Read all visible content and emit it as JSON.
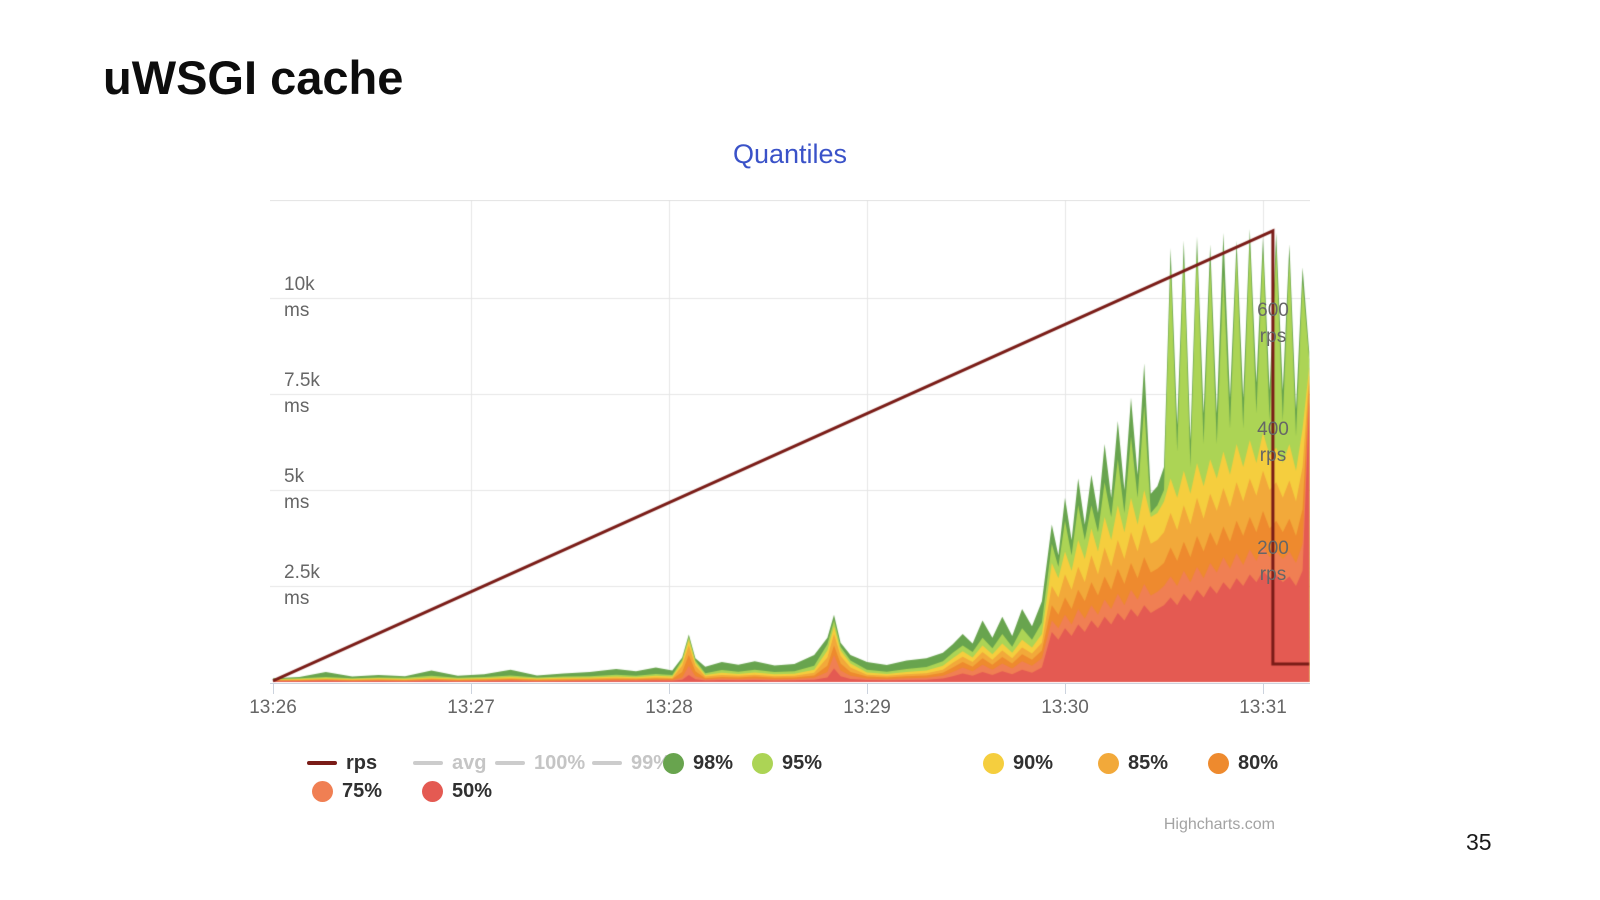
{
  "slide": {
    "title": "uWSGI cache",
    "page_number": "35"
  },
  "chart": {
    "title": "Quantiles",
    "credit": "Highcharts.com",
    "x_axis": {
      "labels": [
        "13:26",
        "13:27",
        "13:28",
        "13:29",
        "13:30",
        "13:31"
      ]
    },
    "y_axis_left": {
      "labels": [
        "10k\nms",
        "7.5k\nms",
        "5k\nms",
        "2.5k\nms"
      ]
    },
    "y_axis_right": {
      "labels": [
        "600\nrps",
        "400\nrps",
        "200\nrps"
      ]
    },
    "legend": [
      {
        "label": "rps",
        "type": "line",
        "color": "#7a1c17",
        "disabled": false
      },
      {
        "label": "avg",
        "type": "line",
        "color": "#cccccc",
        "disabled": true
      },
      {
        "label": "100%",
        "type": "line",
        "color": "#cccccc",
        "disabled": true
      },
      {
        "label": "99%",
        "type": "line",
        "color": "#cccccc",
        "disabled": true
      },
      {
        "label": "98%",
        "type": "circle",
        "color": "#68a44e",
        "disabled": false
      },
      {
        "label": "95%",
        "type": "circle",
        "color": "#acd455",
        "disabled": false
      },
      {
        "label": "90%",
        "type": "circle",
        "color": "#f5ce3e",
        "disabled": false
      },
      {
        "label": "85%",
        "type": "circle",
        "color": "#f2a93a",
        "disabled": false
      },
      {
        "label": "80%",
        "type": "circle",
        "color": "#ee8a2e",
        "disabled": false
      },
      {
        "label": "75%",
        "type": "circle",
        "color": "#f07f53",
        "disabled": false
      },
      {
        "label": "50%",
        "type": "circle",
        "color": "#e45a52",
        "disabled": false
      }
    ]
  },
  "chart_data": {
    "type": "area",
    "title": "Quantiles",
    "subtitle": "",
    "stacking": "overlaid-quantiles (higher quantile drawn behind, filled to zero)",
    "x_unit": "seconds after 13:26",
    "x_ticks": [
      "13:26",
      "13:27",
      "13:28",
      "13:29",
      "13:30",
      "13:31"
    ],
    "x_tick_seconds": [
      0,
      60,
      120,
      180,
      240,
      300
    ],
    "x_range_seconds": [
      0,
      314
    ],
    "y_left": {
      "unit": "ms",
      "ticks": [
        2500,
        5000,
        7500,
        10000
      ],
      "tick_labels": [
        "2.5k ms",
        "5k ms",
        "7.5k ms",
        "10k ms"
      ],
      "range": [
        0,
        12550
      ],
      "grid": true
    },
    "y_right": {
      "unit": "rps",
      "ticks": [
        200,
        400,
        600
      ],
      "tick_labels": [
        "200 rps",
        "400 rps",
        "600 rps"
      ],
      "range": [
        0,
        807
      ],
      "grid": false
    },
    "legend_position": "bottom-left, two rows",
    "rps_line": {
      "name": "rps",
      "color": "#7a1c17",
      "width": 3,
      "points_t_rps": [
        [
          0,
          2
        ],
        [
          303,
          755
        ],
        [
          303,
          30
        ],
        [
          314,
          30
        ]
      ]
    },
    "series": [
      {
        "name": "98%",
        "color": "#68a44e",
        "column": 7
      },
      {
        "name": "95%",
        "color": "#acd455",
        "column": 6
      },
      {
        "name": "90%",
        "color": "#f5ce3e",
        "column": 5
      },
      {
        "name": "85%",
        "color": "#f2a93a",
        "column": 4
      },
      {
        "name": "80%",
        "color": "#ee8a2e",
        "column": 3
      },
      {
        "name": "75%",
        "color": "#f07f53",
        "column": 2
      },
      {
        "name": "50%",
        "color": "#e45a52",
        "column": 1
      }
    ],
    "columns": [
      "t_seconds",
      "q50_ms",
      "q75_ms",
      "q80_ms",
      "q85_ms",
      "q90_ms",
      "q95_ms",
      "q98_ms"
    ],
    "samples": [
      [
        0,
        20,
        30,
        40,
        50,
        60,
        80,
        100
      ],
      [
        8,
        25,
        35,
        45,
        60,
        80,
        100,
        130
      ],
      [
        16,
        30,
        45,
        60,
        80,
        100,
        130,
        260
      ],
      [
        24,
        20,
        30,
        45,
        60,
        80,
        100,
        140
      ],
      [
        32,
        25,
        40,
        55,
        75,
        95,
        120,
        180
      ],
      [
        40,
        20,
        30,
        45,
        60,
        80,
        110,
        150
      ],
      [
        48,
        30,
        50,
        70,
        90,
        120,
        160,
        300
      ],
      [
        56,
        20,
        35,
        50,
        65,
        85,
        110,
        160
      ],
      [
        64,
        25,
        40,
        60,
        80,
        100,
        130,
        200
      ],
      [
        72,
        30,
        50,
        75,
        100,
        130,
        170,
        320
      ],
      [
        80,
        20,
        35,
        50,
        70,
        90,
        120,
        170
      ],
      [
        88,
        25,
        40,
        60,
        85,
        110,
        140,
        220
      ],
      [
        96,
        30,
        45,
        65,
        90,
        115,
        150,
        260
      ],
      [
        104,
        35,
        55,
        80,
        110,
        145,
        190,
        340
      ],
      [
        110,
        30,
        50,
        70,
        95,
        125,
        160,
        280
      ],
      [
        116,
        40,
        60,
        90,
        120,
        160,
        210,
        380
      ],
      [
        121,
        35,
        55,
        80,
        105,
        140,
        180,
        300
      ],
      [
        124,
        60,
        120,
        260,
        420,
        520,
        580,
        640
      ],
      [
        126,
        180,
        420,
        700,
        950,
        1100,
        1180,
        1240
      ],
      [
        128,
        70,
        150,
        280,
        420,
        500,
        560,
        620
      ],
      [
        131,
        40,
        70,
        100,
        140,
        180,
        230,
        400
      ],
      [
        136,
        50,
        90,
        130,
        180,
        240,
        310,
        520
      ],
      [
        141,
        45,
        80,
        120,
        160,
        210,
        270,
        450
      ],
      [
        146,
        50,
        90,
        140,
        190,
        250,
        320,
        540
      ],
      [
        152,
        40,
        70,
        110,
        150,
        200,
        260,
        430
      ],
      [
        158,
        45,
        80,
        120,
        165,
        215,
        280,
        470
      ],
      [
        164,
        60,
        110,
        170,
        240,
        320,
        420,
        700
      ],
      [
        168,
        120,
        260,
        420,
        640,
        820,
        980,
        1150
      ],
      [
        170,
        350,
        700,
        950,
        1250,
        1450,
        1600,
        1750
      ],
      [
        172,
        150,
        300,
        480,
        680,
        820,
        920,
        1020
      ],
      [
        175,
        80,
        160,
        260,
        380,
        480,
        560,
        700
      ],
      [
        180,
        50,
        90,
        140,
        190,
        250,
        320,
        520
      ],
      [
        186,
        45,
        80,
        120,
        160,
        210,
        270,
        440
      ],
      [
        192,
        55,
        100,
        150,
        200,
        260,
        340,
        560
      ],
      [
        198,
        60,
        110,
        170,
        230,
        300,
        390,
        620
      ],
      [
        203,
        90,
        160,
        240,
        320,
        420,
        540,
        760
      ],
      [
        206,
        150,
        260,
        380,
        500,
        620,
        760,
        980
      ],
      [
        209,
        220,
        380,
        520,
        660,
        800,
        950,
        1250
      ],
      [
        212,
        160,
        280,
        400,
        520,
        640,
        780,
        1000
      ],
      [
        215,
        260,
        450,
        620,
        780,
        950,
        1150,
        1600
      ],
      [
        218,
        180,
        320,
        450,
        580,
        720,
        880,
        1150
      ],
      [
        221,
        280,
        480,
        650,
        820,
        1000,
        1250,
        1700
      ],
      [
        224,
        200,
        350,
        480,
        620,
        760,
        920,
        1200
      ],
      [
        227,
        320,
        540,
        720,
        900,
        1100,
        1400,
        1900
      ],
      [
        230,
        240,
        420,
        580,
        740,
        900,
        1100,
        1450
      ],
      [
        233,
        380,
        620,
        820,
        1020,
        1250,
        1550,
        2100
      ],
      [
        236,
        1300,
        1600,
        2000,
        2500,
        3100,
        3600,
        4100
      ],
      [
        238,
        1100,
        1400,
        1750,
        2200,
        2700,
        3000,
        3300
      ],
      [
        240,
        1400,
        1750,
        2200,
        2800,
        3400,
        4200,
        4800
      ],
      [
        242,
        1200,
        1500,
        1900,
        2400,
        2900,
        3300,
        3700
      ],
      [
        244,
        1500,
        1900,
        2400,
        3000,
        3700,
        4600,
        5300
      ],
      [
        246,
        1300,
        1650,
        2100,
        2600,
        3200,
        3700,
        4100
      ],
      [
        248,
        1600,
        2000,
        2600,
        3300,
        4000,
        4600,
        5400
      ],
      [
        250,
        1400,
        1750,
        2250,
        2800,
        3400,
        3900,
        4400
      ],
      [
        252,
        1700,
        2150,
        2750,
        3500,
        4300,
        5200,
        6200
      ],
      [
        254,
        1500,
        1900,
        2400,
        3000,
        3700,
        4300,
        4800
      ],
      [
        256,
        1800,
        2300,
        2950,
        3700,
        4600,
        5800,
        6800
      ],
      [
        258,
        1600,
        2000,
        2550,
        3200,
        3900,
        4400,
        5000
      ],
      [
        260,
        1900,
        2400,
        3100,
        3900,
        4800,
        6400,
        7400
      ],
      [
        262,
        1700,
        2150,
        2700,
        3400,
        4100,
        4800,
        5400
      ],
      [
        264,
        2000,
        2550,
        3250,
        4100,
        5000,
        7200,
        8300
      ],
      [
        266,
        1800,
        2250,
        2850,
        3600,
        4300,
        4400,
        4900
      ],
      [
        268,
        1900,
        2350,
        2950,
        3700,
        4400,
        4600,
        5100
      ],
      [
        270,
        2000,
        2500,
        3100,
        3900,
        4700,
        5000,
        5600
      ],
      [
        272,
        2200,
        2750,
        3500,
        4400,
        5300,
        10800,
        11300
      ],
      [
        274,
        2000,
        2500,
        3150,
        3950,
        4800,
        6000,
        6700
      ],
      [
        276,
        2300,
        2900,
        3650,
        4600,
        5500,
        11000,
        11500
      ],
      [
        278,
        2100,
        2600,
        3250,
        4100,
        4900,
        5600,
        6300
      ],
      [
        280,
        2400,
        3000,
        3800,
        4800,
        5700,
        11200,
        11600
      ],
      [
        282,
        2200,
        2700,
        3400,
        4250,
        5100,
        6200,
        7000
      ],
      [
        284,
        2500,
        3100,
        3900,
        4900,
        5800,
        10900,
        11400
      ],
      [
        286,
        2300,
        2850,
        3550,
        4450,
        5300,
        6200,
        7000
      ],
      [
        288,
        2600,
        3250,
        4050,
        5050,
        6000,
        10600,
        11700
      ],
      [
        290,
        2400,
        2950,
        3650,
        4550,
        5400,
        6600,
        7400
      ],
      [
        292,
        2700,
        3350,
        4200,
        5200,
        6200,
        11100,
        11500
      ],
      [
        294,
        2500,
        3050,
        3800,
        4700,
        5600,
        6600,
        7400
      ],
      [
        296,
        2800,
        3450,
        4300,
        5300,
        6300,
        11400,
        11800
      ],
      [
        298,
        2600,
        3150,
        3900,
        4850,
        5700,
        7000,
        7800
      ],
      [
        300,
        2900,
        3550,
        4450,
        5500,
        6500,
        11200,
        11600
      ],
      [
        302,
        2700,
        3250,
        4000,
        5000,
        5900,
        6800,
        7600
      ],
      [
        304,
        2800,
        3400,
        4200,
        5200,
        6100,
        11300,
        11700
      ],
      [
        306,
        2600,
        3200,
        3900,
        4800,
        5700,
        6800,
        7600
      ],
      [
        308,
        2750,
        3400,
        4250,
        5250,
        6200,
        11000,
        11400
      ],
      [
        310,
        2500,
        3100,
        3800,
        4700,
        5500,
        6400,
        7100
      ],
      [
        312,
        2900,
        3600,
        4500,
        5600,
        6600,
        10400,
        10800
      ],
      [
        314,
        7300,
        7600,
        7800,
        8000,
        8200,
        8400,
        8600
      ]
    ]
  }
}
